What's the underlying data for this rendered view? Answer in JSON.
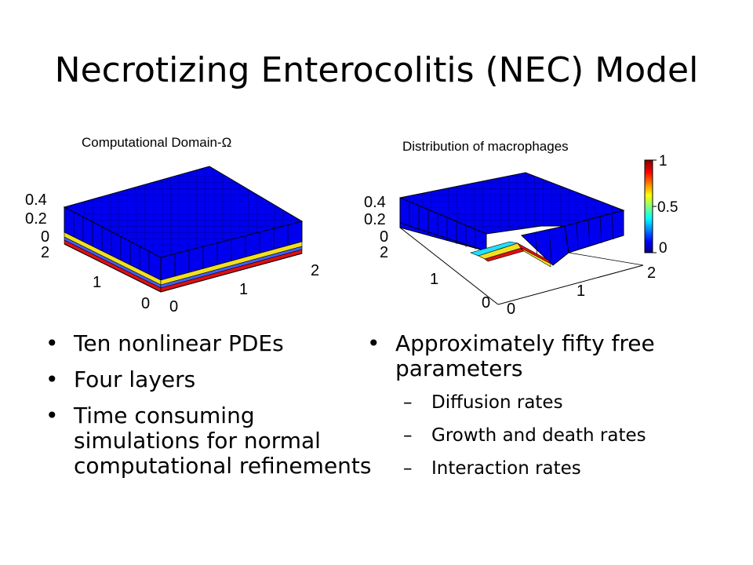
{
  "slide": {
    "title": "Necrotizing Enterocolitis (NEC) Model"
  },
  "figure_left": {
    "title": "Computational Domain-Ω",
    "z_ticks": [
      "0.4",
      "0.2",
      "0"
    ],
    "y_ticks": [
      "2",
      "1",
      "0"
    ],
    "x_ticks": [
      "0",
      "1",
      "2"
    ]
  },
  "figure_right": {
    "title": "Distribution of macrophages",
    "z_ticks": [
      "0.4",
      "0.2",
      "0"
    ],
    "y_ticks": [
      "2",
      "1",
      "0"
    ],
    "x_ticks": [
      "0",
      "1",
      "2"
    ],
    "colorbar_ticks": [
      "1",
      "0.5",
      "0"
    ],
    "colormap": [
      "#7f0000",
      "#ff0000",
      "#ffff00",
      "#00ffff",
      "#0000ff",
      "#00007f"
    ]
  },
  "colors": {
    "surface_blue": "#0000ee",
    "layer_yellow": "#f0e020",
    "layer_red": "#dd1010"
  },
  "bullets_left": [
    "Ten nonlinear PDEs",
    "Four layers",
    "Time consuming simulations for normal computational refinements"
  ],
  "bullets_right": {
    "main": "Approximately fifty free parameters",
    "sub": [
      "Diffusion rates",
      "Growth and death rates",
      "Interaction rates"
    ]
  }
}
